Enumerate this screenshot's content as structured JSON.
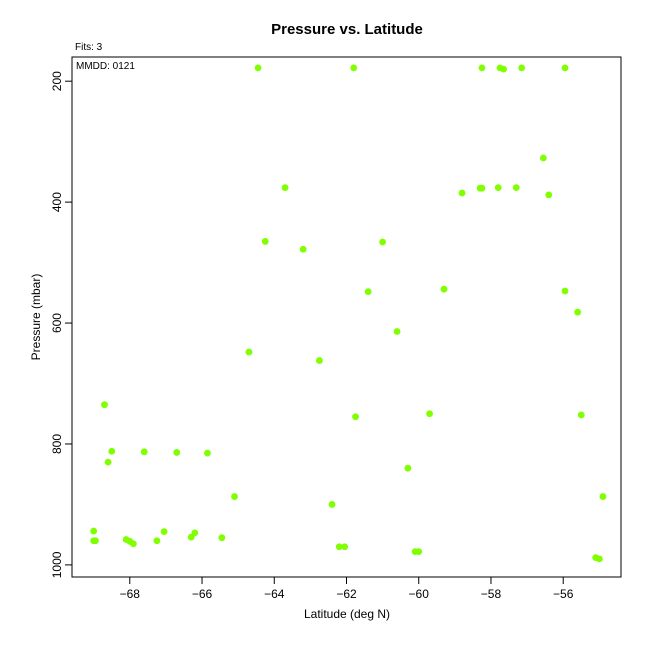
{
  "header": {
    "fits_label": "Fits: 3",
    "mmdd_label": "MMDD: 0121"
  },
  "chart_data": {
    "type": "scatter",
    "title": "Pressure vs. Latitude",
    "xlabel": "Latitude (deg N)",
    "ylabel": "Pressure (mbar)",
    "xlim": [
      -69.6,
      -54.4
    ],
    "ylim": [
      1020,
      160
    ],
    "y_reversed": true,
    "x_ticks": [
      -68,
      -66,
      -64,
      -62,
      -60,
      -58,
      -56
    ],
    "y_ticks": [
      200,
      400,
      600,
      800,
      1000
    ],
    "grid": false,
    "point_color": "#7fff00",
    "points": [
      {
        "x": -69.0,
        "y": 944
      },
      {
        "x": -69.0,
        "y": 960
      },
      {
        "x": -68.95,
        "y": 960
      },
      {
        "x": -68.7,
        "y": 735
      },
      {
        "x": -68.6,
        "y": 830
      },
      {
        "x": -68.5,
        "y": 812
      },
      {
        "x": -68.1,
        "y": 958
      },
      {
        "x": -68.0,
        "y": 961
      },
      {
        "x": -67.9,
        "y": 965
      },
      {
        "x": -67.6,
        "y": 813
      },
      {
        "x": -67.25,
        "y": 960
      },
      {
        "x": -67.05,
        "y": 945
      },
      {
        "x": -66.7,
        "y": 814
      },
      {
        "x": -66.3,
        "y": 954
      },
      {
        "x": -66.2,
        "y": 947
      },
      {
        "x": -65.85,
        "y": 815
      },
      {
        "x": -65.45,
        "y": 955
      },
      {
        "x": -65.1,
        "y": 887
      },
      {
        "x": -64.7,
        "y": 648
      },
      {
        "x": -64.45,
        "y": 178
      },
      {
        "x": -64.25,
        "y": 465
      },
      {
        "x": -63.7,
        "y": 376
      },
      {
        "x": -63.2,
        "y": 478
      },
      {
        "x": -62.75,
        "y": 662
      },
      {
        "x": -62.4,
        "y": 900
      },
      {
        "x": -62.2,
        "y": 970
      },
      {
        "x": -62.05,
        "y": 970
      },
      {
        "x": -61.8,
        "y": 178
      },
      {
        "x": -61.75,
        "y": 755
      },
      {
        "x": -61.4,
        "y": 548
      },
      {
        "x": -61.0,
        "y": 466
      },
      {
        "x": -60.6,
        "y": 614
      },
      {
        "x": -60.3,
        "y": 840
      },
      {
        "x": -60.1,
        "y": 978
      },
      {
        "x": -60.0,
        "y": 978
      },
      {
        "x": -59.7,
        "y": 750
      },
      {
        "x": -59.3,
        "y": 544
      },
      {
        "x": -58.8,
        "y": 385
      },
      {
        "x": -58.3,
        "y": 377
      },
      {
        "x": -58.25,
        "y": 377
      },
      {
        "x": -58.25,
        "y": 178
      },
      {
        "x": -57.8,
        "y": 376
      },
      {
        "x": -57.75,
        "y": 178
      },
      {
        "x": -57.65,
        "y": 180
      },
      {
        "x": -57.3,
        "y": 376
      },
      {
        "x": -57.15,
        "y": 178
      },
      {
        "x": -56.55,
        "y": 327
      },
      {
        "x": -56.4,
        "y": 388
      },
      {
        "x": -55.95,
        "y": 178
      },
      {
        "x": -55.95,
        "y": 547
      },
      {
        "x": -55.6,
        "y": 582
      },
      {
        "x": -55.5,
        "y": 752
      },
      {
        "x": -55.1,
        "y": 988
      },
      {
        "x": -55.0,
        "y": 990
      },
      {
        "x": -54.9,
        "y": 887
      }
    ]
  }
}
